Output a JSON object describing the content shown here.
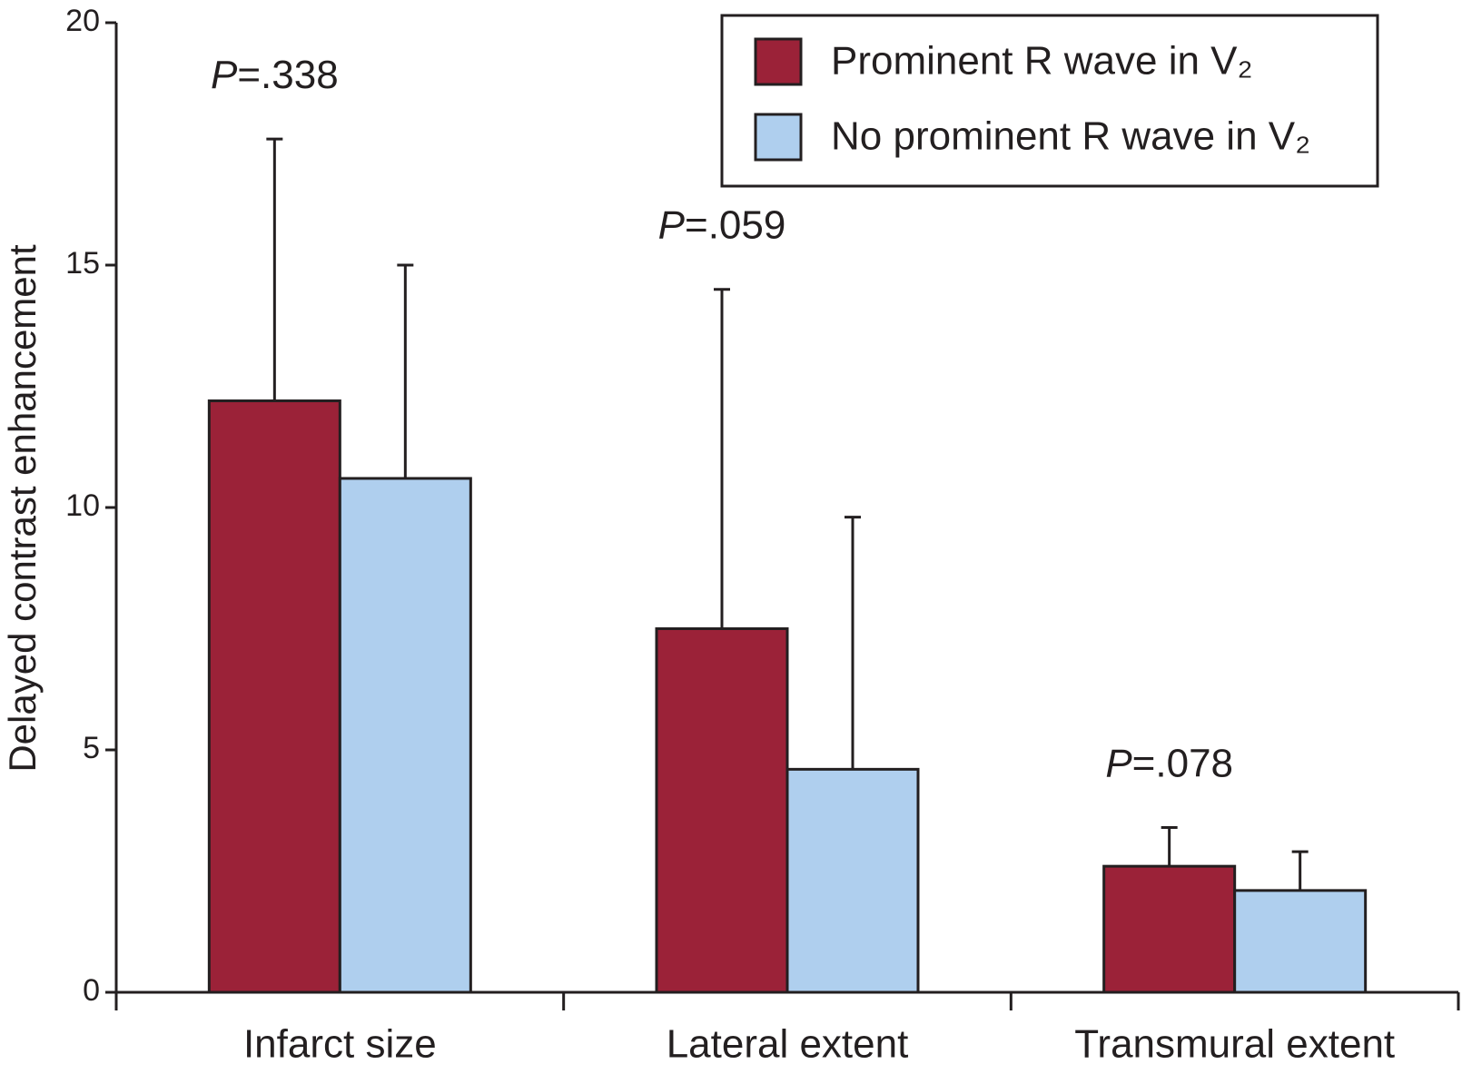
{
  "chart_data": {
    "type": "bar",
    "y_label": "Delayed contrast enhancement",
    "categories": [
      "Infarct size",
      "Lateral extent",
      "Transmural extent"
    ],
    "series": [
      {
        "name": "Prominent R wave in V₂",
        "color": "#9b2238",
        "values": [
          12.2,
          7.5,
          2.6
        ],
        "errors": [
          5.4,
          7.0,
          0.8
        ]
      },
      {
        "name": "No prominent R wave in V₂",
        "color": "#afcfee",
        "values": [
          10.6,
          4.6,
          2.1
        ],
        "errors": [
          4.4,
          5.2,
          0.8
        ]
      }
    ],
    "annotations": [
      {
        "italic": "P",
        "text": "=.338"
      },
      {
        "italic": "P",
        "text": "=.059"
      },
      {
        "italic": "P",
        "text": "=.078"
      }
    ],
    "ylim": [
      0,
      20
    ],
    "yticks": [
      0,
      5,
      10,
      15,
      20
    ],
    "grid": false
  }
}
